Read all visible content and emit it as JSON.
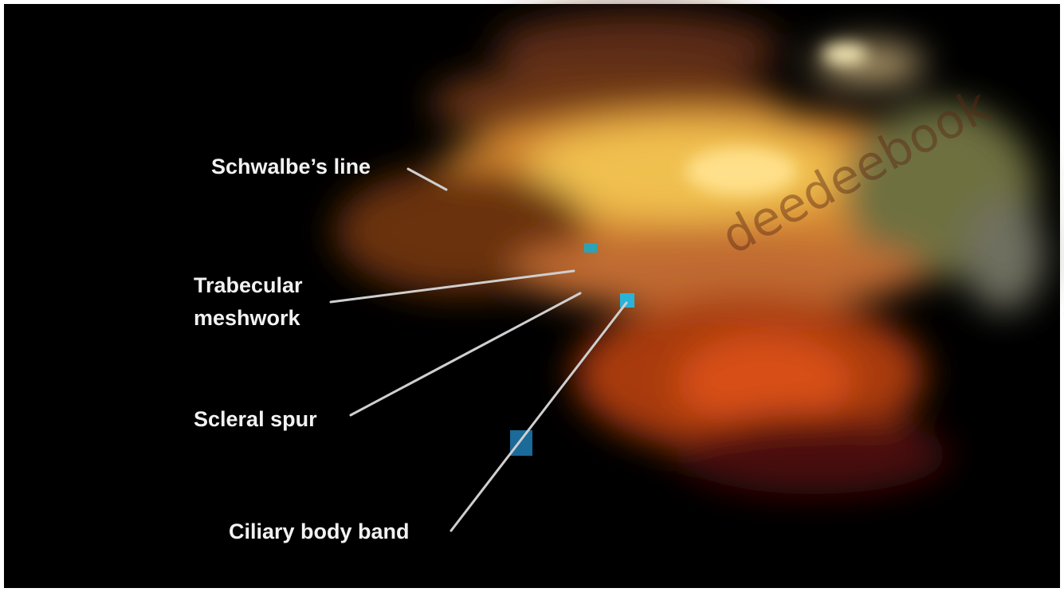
{
  "labels": {
    "schwalbes_line": "Schwalbe’s line",
    "trabecular_meshwork_1": "Trabecular",
    "trabecular_meshwork_2": "meshwork",
    "scleral_spur": "Scleral spur",
    "ciliary_body_band": "Ciliary body band"
  },
  "watermark": "deedeebook"
}
